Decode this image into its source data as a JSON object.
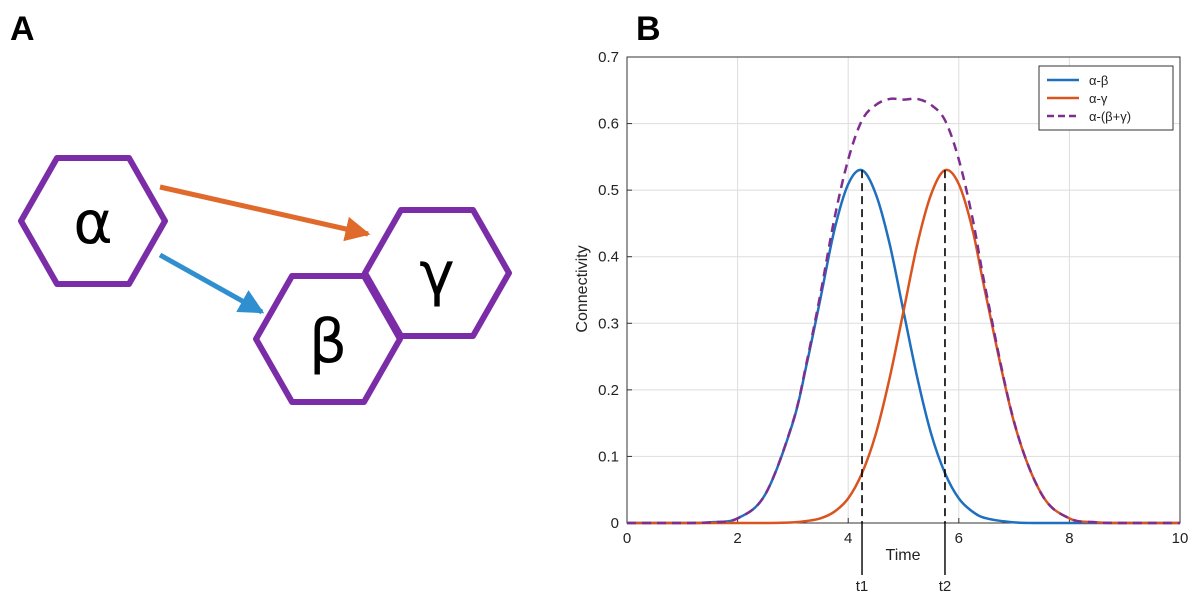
{
  "panels": {
    "left": "A",
    "right": "B"
  },
  "diagram": {
    "nodes": [
      {
        "id": "alpha",
        "label": "α"
      },
      {
        "id": "beta",
        "label": "β"
      },
      {
        "id": "gamma",
        "label": "γ"
      }
    ],
    "edges": [
      {
        "from": "alpha",
        "to": "gamma",
        "color": "#e06a2b"
      },
      {
        "from": "alpha",
        "to": "beta",
        "color": "#2f8fcf"
      }
    ],
    "node_stroke_color": "#7a2da6"
  },
  "chart_data": {
    "type": "line",
    "title": "",
    "xlabel": "Time",
    "ylabel": "Connectivity",
    "xlim": [
      0,
      10
    ],
    "ylim": [
      0,
      0.7
    ],
    "xticks": [
      0,
      2,
      4,
      6,
      8,
      10
    ],
    "yticks": [
      0,
      0.1,
      0.2,
      0.3,
      0.4,
      0.5,
      0.6,
      0.7
    ],
    "grid": true,
    "legend_position": "top-right",
    "x": [
      0,
      0.5,
      1,
      1.5,
      2,
      2.5,
      3,
      3.25,
      3.5,
      3.75,
      4,
      4.25,
      4.5,
      4.75,
      5,
      5.25,
      5.5,
      5.75,
      6,
      6.25,
      6.5,
      7,
      7.5,
      8,
      8.5,
      9,
      9.5,
      10
    ],
    "series": [
      {
        "name": "α-β",
        "color": "#1f6fbf",
        "style": "solid",
        "values": [
          0,
          0,
          0,
          0.001,
          0.007,
          0.043,
          0.151,
          0.239,
          0.338,
          0.44,
          0.509,
          0.53,
          0.494,
          0.419,
          0.318,
          0.218,
          0.134,
          0.075,
          0.037,
          0.017,
          0.007,
          0.001,
          0,
          0,
          0,
          0,
          0,
          0
        ]
      },
      {
        "name": "α-γ",
        "color": "#d9541e",
        "style": "solid",
        "values": [
          0,
          0,
          0,
          0,
          0,
          0,
          0.001,
          0.003,
          0.007,
          0.017,
          0.037,
          0.075,
          0.134,
          0.218,
          0.318,
          0.419,
          0.494,
          0.53,
          0.509,
          0.44,
          0.338,
          0.151,
          0.043,
          0.007,
          0.001,
          0,
          0,
          0
        ]
      },
      {
        "name": "α-(β+γ)",
        "color": "#7e2f8e",
        "style": "dashed",
        "values": [
          0,
          0,
          0,
          0.001,
          0.007,
          0.043,
          0.152,
          0.242,
          0.345,
          0.457,
          0.546,
          0.605,
          0.628,
          0.637,
          0.636,
          0.637,
          0.628,
          0.605,
          0.546,
          0.457,
          0.345,
          0.152,
          0.043,
          0.007,
          0.001,
          0,
          0,
          0
        ]
      }
    ],
    "annotations": [
      {
        "label": "t1",
        "x": 4.25
      },
      {
        "label": "t2",
        "x": 5.75
      }
    ]
  }
}
